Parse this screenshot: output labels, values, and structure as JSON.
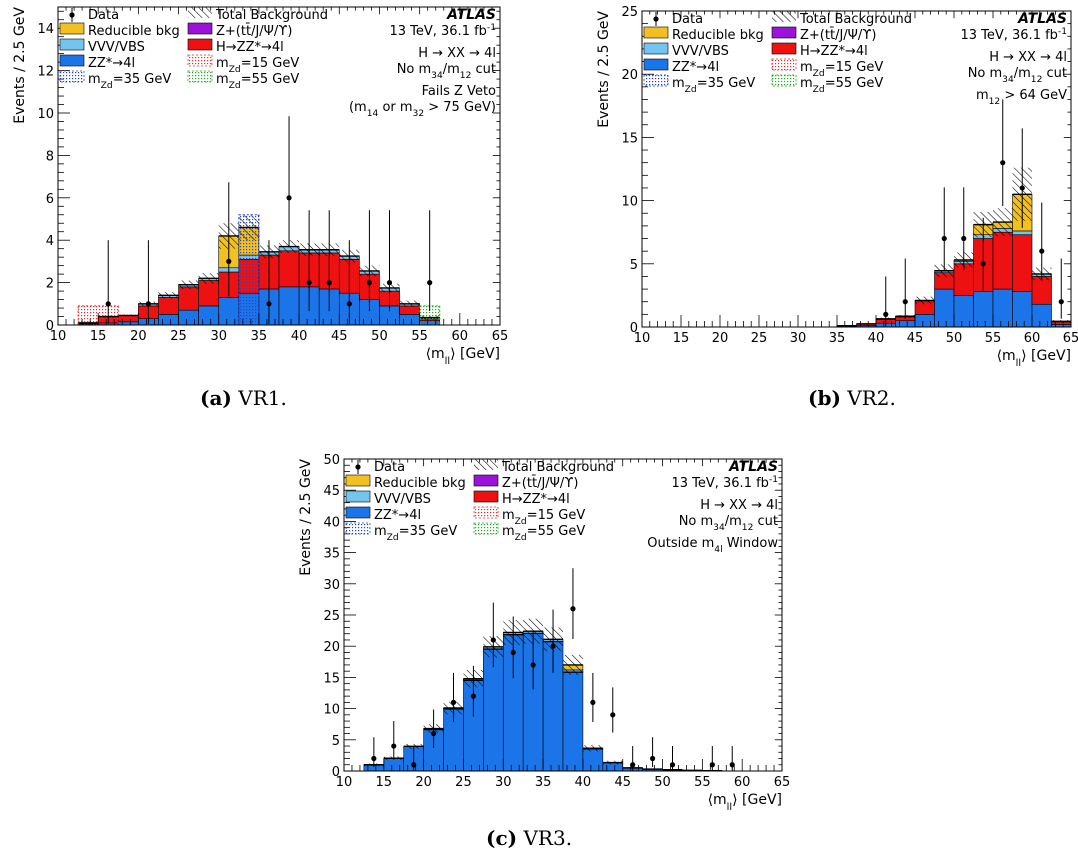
{
  "legend_labels": {
    "data": "Data",
    "total_bkg": "Total Background",
    "reducible": "Reducible bkg",
    "quarkonia": "Z+(tt̄/J/Ψ/ϒ)",
    "vvv": "VVV/VBS",
    "hzz": "H→ZZ*→4l",
    "zz": "ZZ*→4l",
    "mzd15": "m_Zd=15 GeV",
    "mzd35": "m_Zd=35 GeV",
    "mzd55": "m_Zd=55 GeV"
  },
  "colors": {
    "zz": "#1c75e8",
    "hzz": "#ee1111",
    "vvv": "#74c4f0",
    "quarkonia": "#9b12d9",
    "reducible": "#f2c020",
    "mzd15": "#e03030",
    "mzd35": "#2244cc",
    "mzd55": "#22aa22"
  },
  "chart_data": [
    {
      "id": "vr1",
      "type": "histogram",
      "caption_label": "(a)",
      "caption_text": "VR1.",
      "atlas_label": "ATLAS",
      "energy_label": "13 TeV, 36.1 fb",
      "energy_sup": "-1",
      "annotations": [
        "H → XX → 4l",
        "No m34/m12 cut",
        "",
        "Fails Z Veto",
        "(m14 or m32 > 75 GeV)"
      ],
      "xlabel": "⟨m_ll⟩ [GeV]",
      "ylabel": "Events / 2.5 GeV",
      "xlim": [
        10,
        65
      ],
      "ylim": [
        0,
        15
      ],
      "xticks": [
        10,
        15,
        20,
        25,
        30,
        35,
        40,
        45,
        50,
        55,
        60,
        65
      ],
      "yticks": [
        0,
        2,
        4,
        6,
        8,
        10,
        12,
        14
      ],
      "bin_lows": [
        12.5,
        15,
        17.5,
        20,
        22.5,
        25,
        27.5,
        30,
        32.5,
        35,
        37.5,
        40,
        42.5,
        45,
        47.5,
        50,
        52.5,
        55,
        57.5
      ],
      "bin_width": 2.5,
      "zz": [
        0.05,
        0.1,
        0.15,
        0.3,
        0.5,
        0.7,
        0.9,
        1.3,
        1.5,
        1.7,
        1.8,
        1.8,
        1.7,
        1.5,
        1.2,
        0.9,
        0.5,
        0.2,
        0.0
      ],
      "hzz": [
        0.05,
        0.3,
        0.3,
        0.6,
        0.8,
        1.1,
        1.2,
        1.2,
        1.6,
        1.6,
        1.7,
        1.6,
        1.7,
        1.6,
        1.2,
        0.7,
        0.4,
        0.1,
        0.0
      ],
      "vvv": [
        0.0,
        0.0,
        0.0,
        0.1,
        0.1,
        0.1,
        0.1,
        0.2,
        0.2,
        0.15,
        0.2,
        0.15,
        0.15,
        0.15,
        0.15,
        0.15,
        0.1,
        0.05,
        0.0
      ],
      "reducible": [
        0.0,
        0.0,
        0.0,
        0.0,
        0.0,
        0.0,
        0.0,
        1.5,
        1.3,
        0.0,
        0.0,
        0.0,
        0.0,
        0.0,
        0.0,
        0.0,
        0.0,
        0.0,
        0.0
      ],
      "band": [
        0.05,
        0.05,
        0.05,
        0.1,
        0.15,
        0.2,
        0.25,
        0.6,
        0.6,
        0.3,
        0.3,
        0.3,
        0.3,
        0.3,
        0.25,
        0.2,
        0.15,
        0.1,
        0.05
      ],
      "data_x": [
        16.25,
        21.25,
        31.25,
        36.25,
        38.75,
        41.25,
        43.75,
        46.25,
        48.75,
        51.25,
        56.25
      ],
      "data_y": [
        1,
        1,
        3,
        1,
        6,
        2,
        2,
        1,
        2,
        2,
        2
      ],
      "signals": [
        {
          "key": "mzd15",
          "x0": 12.5,
          "x1": 17.5,
          "y": 0.9
        },
        {
          "key": "mzd35",
          "x0": 32.5,
          "x1": 35,
          "y": 5.2
        },
        {
          "key": "mzd55",
          "x0": 55,
          "x1": 57.5,
          "y": 0.9
        }
      ]
    },
    {
      "id": "vr2",
      "type": "histogram",
      "caption_label": "(b)",
      "caption_text": "VR2.",
      "atlas_label": "ATLAS",
      "energy_label": "13 TeV, 36.1 fb",
      "energy_sup": "-1",
      "annotations": [
        "H → XX → 4l",
        "No m34/m12 cut",
        "",
        "m12 > 64 GeV"
      ],
      "xlabel": "⟨m_ll⟩ [GeV]",
      "ylabel": "Events / 2.5 GeV",
      "xlim": [
        10,
        65
      ],
      "ylim": [
        0,
        25
      ],
      "xticks": [
        10,
        15,
        20,
        25,
        30,
        35,
        40,
        45,
        50,
        55,
        60,
        65
      ],
      "yticks": [
        0,
        5,
        10,
        15,
        20,
        25
      ],
      "bin_lows": [
        35,
        37.5,
        40,
        42.5,
        45,
        47.5,
        50,
        52.5,
        55,
        57.5,
        60,
        62.5
      ],
      "bin_width": 2.5,
      "zz": [
        0.05,
        0.1,
        0.3,
        0.5,
        1.0,
        3.0,
        2.5,
        2.8,
        3.0,
        2.8,
        1.8,
        0.2
      ],
      "hzz": [
        0.05,
        0.15,
        0.3,
        0.3,
        1.0,
        1.3,
        2.5,
        4.2,
        4.5,
        4.5,
        2.2,
        0.2
      ],
      "vvv": [
        0.0,
        0.0,
        0.05,
        0.05,
        0.1,
        0.15,
        0.2,
        0.3,
        0.3,
        0.3,
        0.2,
        0.05
      ],
      "reducible": [
        0.0,
        0.0,
        0.0,
        0.0,
        0.0,
        0.0,
        0.1,
        0.8,
        0.5,
        2.9,
        0.0,
        0.0
      ],
      "band": [
        0.05,
        0.05,
        0.1,
        0.1,
        0.3,
        0.5,
        0.6,
        1.0,
        1.1,
        2.1,
        0.5,
        0.1
      ],
      "data_x": [
        41.25,
        43.75,
        48.75,
        51.25,
        53.75,
        56.25,
        58.75,
        61.25,
        63.75
      ],
      "data_y": [
        1,
        2,
        7,
        7,
        5,
        13,
        11,
        6,
        2
      ],
      "signals": []
    },
    {
      "id": "vr3",
      "type": "histogram",
      "caption_label": "(c)",
      "caption_text": "VR3.",
      "atlas_label": "ATLAS",
      "energy_label": "13 TeV, 36.1 fb",
      "energy_sup": "-1",
      "annotations": [
        "H → XX → 4l",
        "No m34/m12 cut",
        "",
        "Outside m4l Window"
      ],
      "xlabel": "⟨m_ll⟩ [GeV]",
      "ylabel": "Events / 2.5 GeV",
      "xlim": [
        10,
        65
      ],
      "ylim": [
        0,
        50
      ],
      "xticks": [
        10,
        15,
        20,
        25,
        30,
        35,
        40,
        45,
        50,
        55,
        60,
        65
      ],
      "yticks": [
        0,
        5,
        10,
        15,
        20,
        25,
        30,
        35,
        40,
        45,
        50
      ],
      "bin_lows": [
        12.5,
        15,
        17.5,
        20,
        22.5,
        25,
        27.5,
        30,
        32.5,
        35,
        37.5,
        40,
        42.5,
        45,
        47.5,
        50,
        52.5,
        55
      ],
      "bin_width": 2.5,
      "zz": [
        1.0,
        2.0,
        3.9,
        6.6,
        9.9,
        14.5,
        19.5,
        21.8,
        22.0,
        20.7,
        15.8,
        3.5,
        1.3,
        0.5,
        0.3,
        0.2,
        0.1,
        0.05
      ],
      "hzz": [
        0.0,
        0.0,
        0.0,
        0.1,
        0.1,
        0.1,
        0.1,
        0.1,
        0.1,
        0.1,
        0.1,
        0.05,
        0.0,
        0.0,
        0.0,
        0.0,
        0.0,
        0.0
      ],
      "vvv": [
        0.0,
        0.05,
        0.05,
        0.1,
        0.1,
        0.2,
        0.3,
        0.3,
        0.3,
        0.3,
        0.3,
        0.1,
        0.05,
        0.0,
        0.0,
        0.0,
        0.0,
        0.0
      ],
      "reducible": [
        0.0,
        0.0,
        0.0,
        0.0,
        0.0,
        0.0,
        0.0,
        0.0,
        0.0,
        0.0,
        0.8,
        0.0,
        0.0,
        0.0,
        0.0,
        0.0,
        0.0,
        0.0
      ],
      "band": [
        0.2,
        0.3,
        0.4,
        0.7,
        1.0,
        1.4,
        1.7,
        2.0,
        2.0,
        1.9,
        1.6,
        0.5,
        0.3,
        0.1,
        0.1,
        0.05,
        0.05,
        0.05
      ],
      "data_x": [
        13.75,
        16.25,
        18.75,
        21.25,
        23.75,
        26.25,
        28.75,
        31.25,
        33.75,
        36.25,
        38.75,
        41.25,
        43.75,
        46.25,
        48.75,
        51.25,
        56.25,
        58.75
      ],
      "data_y": [
        2,
        4,
        1,
        6,
        11,
        12,
        21,
        19,
        17,
        20,
        26,
        11,
        9,
        1,
        2,
        1,
        1,
        1
      ],
      "signals": []
    }
  ]
}
